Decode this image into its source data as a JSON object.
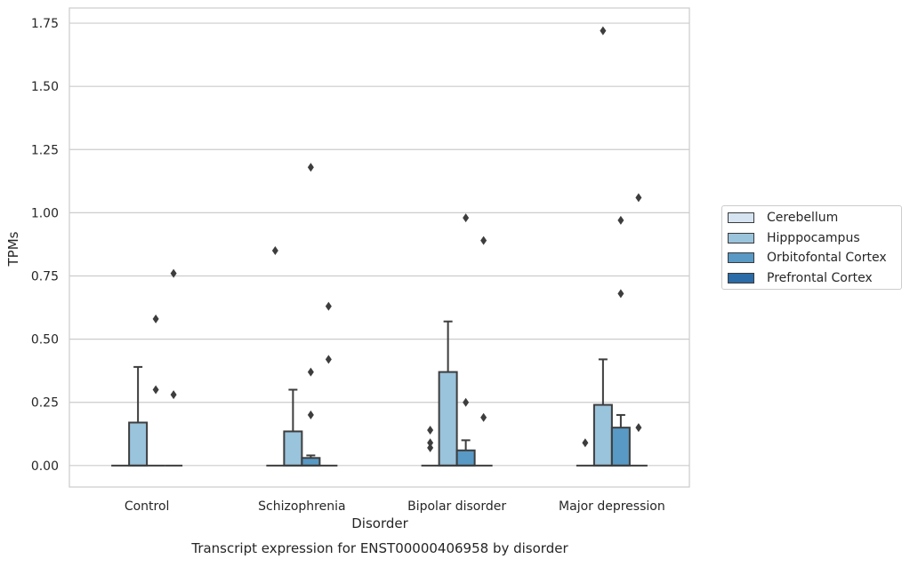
{
  "chart_data": {
    "type": "box",
    "title": "",
    "caption": "Transcript expression for ENST00000406958 by disorder",
    "xlabel": "Disorder",
    "ylabel": "TPMs",
    "ylim": [
      -0.085,
      1.81
    ],
    "yticks": [
      0.0,
      0.25,
      0.5,
      0.75,
      1.0,
      1.25,
      1.5,
      1.75
    ],
    "ytick_labels": [
      "0.00",
      "0.25",
      "0.50",
      "0.75",
      "1.00",
      "1.25",
      "1.50",
      "1.75"
    ],
    "grid": true,
    "legend_position": "right",
    "categories": [
      "Control",
      "Schizophrenia",
      "Bipolar disorder",
      "Major depression"
    ],
    "series": [
      {
        "name": "Cerebellum",
        "color": "#d6e4f1",
        "boxes": [
          {
            "q1": 0,
            "median": 0,
            "q3": 0,
            "whisker_low": 0,
            "whisker_high": 0,
            "outliers": []
          },
          {
            "q1": 0,
            "median": 0,
            "q3": 0,
            "whisker_low": 0,
            "whisker_high": 0,
            "outliers": [
              0.85
            ]
          },
          {
            "q1": 0,
            "median": 0,
            "q3": 0,
            "whisker_low": 0,
            "whisker_high": 0,
            "outliers": [
              0.14,
              0.09,
              0.07
            ]
          },
          {
            "q1": 0,
            "median": 0,
            "q3": 0,
            "whisker_low": 0,
            "whisker_high": 0,
            "outliers": [
              0.09
            ]
          }
        ]
      },
      {
        "name": "Hipppocampus",
        "color": "#9ac3dc",
        "boxes": [
          {
            "q1": 0,
            "median": 0,
            "q3": 0.17,
            "whisker_low": 0,
            "whisker_high": 0.39,
            "outliers": []
          },
          {
            "q1": 0,
            "median": 0,
            "q3": 0.135,
            "whisker_low": 0,
            "whisker_high": 0.3,
            "outliers": []
          },
          {
            "q1": 0,
            "median": 0,
            "q3": 0.37,
            "whisker_low": 0,
            "whisker_high": 0.57,
            "outliers": []
          },
          {
            "q1": 0,
            "median": 0,
            "q3": 0.24,
            "whisker_low": 0,
            "whisker_high": 0.42,
            "outliers": [
              1.72
            ]
          }
        ]
      },
      {
        "name": "Orbitofontal Cortex",
        "color": "#5899c5",
        "boxes": [
          {
            "q1": 0,
            "median": 0,
            "q3": 0,
            "whisker_low": 0,
            "whisker_high": 0,
            "outliers": [
              0.58,
              0.3
            ]
          },
          {
            "q1": 0,
            "median": 0,
            "q3": 0.03,
            "whisker_low": 0,
            "whisker_high": 0.04,
            "outliers": [
              1.18,
              0.37,
              0.2
            ]
          },
          {
            "q1": 0,
            "median": 0,
            "q3": 0.06,
            "whisker_low": 0,
            "whisker_high": 0.1,
            "outliers": [
              0.98,
              0.25
            ]
          },
          {
            "q1": 0,
            "median": 0,
            "q3": 0.15,
            "whisker_low": 0,
            "whisker_high": 0.2,
            "outliers": [
              0.97,
              0.68
            ]
          }
        ]
      },
      {
        "name": "Prefrontal Cortex",
        "color": "#2a6ba8",
        "boxes": [
          {
            "q1": 0,
            "median": 0,
            "q3": 0,
            "whisker_low": 0,
            "whisker_high": 0,
            "outliers": [
              0.76,
              0.28
            ]
          },
          {
            "q1": 0,
            "median": 0,
            "q3": 0,
            "whisker_low": 0,
            "whisker_high": 0,
            "outliers": [
              0.63,
              0.42
            ]
          },
          {
            "q1": 0,
            "median": 0,
            "q3": 0,
            "whisker_low": 0,
            "whisker_high": 0,
            "outliers": [
              0.89,
              0.19
            ]
          },
          {
            "q1": 0,
            "median": 0,
            "q3": 0,
            "whisker_low": 0,
            "whisker_high": 0,
            "outliers": [
              1.06,
              0.15
            ]
          }
        ]
      }
    ]
  }
}
